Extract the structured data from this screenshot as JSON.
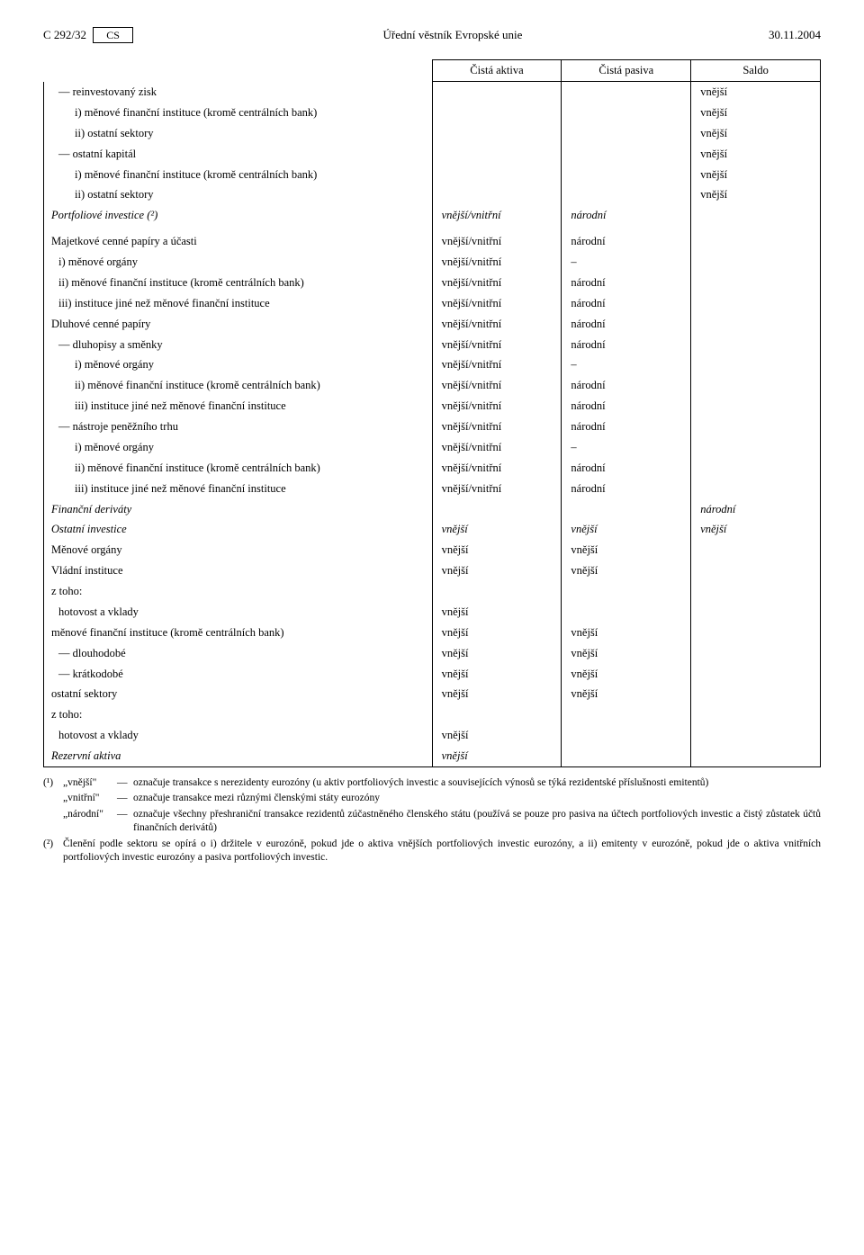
{
  "header": {
    "page_ref": "C 292/32",
    "lang_code": "CS",
    "journal_title": "Úřední věstník Evropské unie",
    "date": "30.11.2004"
  },
  "table": {
    "columns": [
      "Čistá aktiva",
      "Čistá pasiva",
      "Saldo"
    ],
    "rows": [
      {
        "label": "— reinvestovaný zisk",
        "indent": 1,
        "aktiva": "",
        "pasiva": "",
        "saldo": "vnější"
      },
      {
        "label": "i) měnové finanční instituce (kromě centrálních bank)",
        "indent": 2,
        "aktiva": "",
        "pasiva": "",
        "saldo": "vnější"
      },
      {
        "label": "ii) ostatní sektory",
        "indent": 2,
        "aktiva": "",
        "pasiva": "",
        "saldo": "vnější"
      },
      {
        "label": "— ostatní kapitál",
        "indent": 1,
        "aktiva": "",
        "pasiva": "",
        "saldo": "vnější"
      },
      {
        "label": "i) měnové finanční instituce (kromě centrálních bank)",
        "indent": 2,
        "aktiva": "",
        "pasiva": "",
        "saldo": "vnější"
      },
      {
        "label": "ii) ostatní sektory",
        "indent": 2,
        "aktiva": "",
        "pasiva": "",
        "saldo": "vnější"
      },
      {
        "label": "Portfoliové investice (²)",
        "indent": 0,
        "italic": true,
        "aktiva": "vnější/vnitřní",
        "pasiva": "národní",
        "saldo": ""
      },
      {
        "label": "Majetkové cenné papíry a účasti",
        "indent": 0,
        "aktiva": "vnější/vnitřní",
        "pasiva": "národní",
        "saldo": "",
        "gap": true
      },
      {
        "label": "i) měnové orgány",
        "indent": 1,
        "aktiva": "vnější/vnitřní",
        "pasiva": "–",
        "saldo": ""
      },
      {
        "label": "ii) měnové finanční instituce (kromě centrálních bank)",
        "indent": 1,
        "aktiva": "vnější/vnitřní",
        "pasiva": "národní",
        "saldo": ""
      },
      {
        "label": "iii) instituce jiné než měnové finanční instituce",
        "indent": 1,
        "aktiva": "vnější/vnitřní",
        "pasiva": "národní",
        "saldo": ""
      },
      {
        "label": "Dluhové cenné papíry",
        "indent": 0,
        "aktiva": "vnější/vnitřní",
        "pasiva": "národní",
        "saldo": ""
      },
      {
        "label": "— dluhopisy a směnky",
        "indent": 1,
        "aktiva": "vnější/vnitřní",
        "pasiva": "národní",
        "saldo": ""
      },
      {
        "label": "i) měnové orgány",
        "indent": 2,
        "aktiva": "vnější/vnitřní",
        "pasiva": "–",
        "saldo": ""
      },
      {
        "label": "ii) měnové finanční instituce (kromě centrálních bank)",
        "indent": 2,
        "aktiva": "vnější/vnitřní",
        "pasiva": "národní",
        "saldo": ""
      },
      {
        "label": "iii) instituce jiné než měnové finanční instituce",
        "indent": 2,
        "aktiva": "vnější/vnitřní",
        "pasiva": "národní",
        "saldo": ""
      },
      {
        "label": "— nástroje peněžního trhu",
        "indent": 1,
        "aktiva": "vnější/vnitřní",
        "pasiva": "národní",
        "saldo": ""
      },
      {
        "label": "i) měnové orgány",
        "indent": 2,
        "aktiva": "vnější/vnitřní",
        "pasiva": "–",
        "saldo": ""
      },
      {
        "label": "ii) měnové finanční instituce (kromě centrálních bank)",
        "indent": 2,
        "aktiva": "vnější/vnitřní",
        "pasiva": "národní",
        "saldo": ""
      },
      {
        "label": "iii) instituce jiné než měnové finanční instituce",
        "indent": 2,
        "aktiva": "vnější/vnitřní",
        "pasiva": "národní",
        "saldo": ""
      },
      {
        "label": "Finanční deriváty",
        "indent": 0,
        "italic": true,
        "aktiva": "",
        "pasiva": "",
        "saldo": "národní"
      },
      {
        "label": "Ostatní investice",
        "indent": 0,
        "italic": true,
        "aktiva": "vnější",
        "pasiva": "vnější",
        "saldo": "vnější"
      },
      {
        "label": "Měnové orgány",
        "indent": 0,
        "aktiva": "vnější",
        "pasiva": "vnější",
        "saldo": ""
      },
      {
        "label": "Vládní instituce",
        "indent": 0,
        "aktiva": "vnější",
        "pasiva": "vnější",
        "saldo": ""
      },
      {
        "label": "z toho:",
        "indent": 0,
        "aktiva": "",
        "pasiva": "",
        "saldo": ""
      },
      {
        "label": "hotovost a vklady",
        "indent": 1,
        "aktiva": "vnější",
        "pasiva": "",
        "saldo": ""
      },
      {
        "label": "měnové finanční instituce (kromě centrálních bank)",
        "indent": 0,
        "aktiva": "vnější",
        "pasiva": "vnější",
        "saldo": ""
      },
      {
        "label": "— dlouhodobé",
        "indent": 1,
        "aktiva": "vnější",
        "pasiva": "vnější",
        "saldo": ""
      },
      {
        "label": "— krátkodobé",
        "indent": 1,
        "aktiva": "vnější",
        "pasiva": "vnější",
        "saldo": ""
      },
      {
        "label": "ostatní sektory",
        "indent": 0,
        "aktiva": "vnější",
        "pasiva": "vnější",
        "saldo": ""
      },
      {
        "label": "z toho:",
        "indent": 0,
        "aktiva": "",
        "pasiva": "",
        "saldo": ""
      },
      {
        "label": "hotovost a vklady",
        "indent": 1,
        "aktiva": "vnější",
        "pasiva": "",
        "saldo": ""
      },
      {
        "label": "Rezervní aktiva",
        "indent": 0,
        "italic": true,
        "aktiva": "vnější",
        "pasiva": "",
        "saldo": ""
      }
    ]
  },
  "footnotes": {
    "f1_mark": "(¹)",
    "f1_t1": "„vnější\"",
    "f1_b1": "označuje transakce s nerezidenty eurozóny (u aktiv portfoliových investic a souvisejících výnosů se týká rezidentské příslušnosti emitentů)",
    "f1_t2": "„vnitřní\"",
    "f1_b2": "označuje transakce mezi různými členskými státy eurozóny",
    "f1_t3": "„národní\"",
    "f1_b3": "označuje všechny přeshraniční transakce rezidentů zúčastněného členského státu (používá se pouze pro pasiva na účtech portfoliových investic a čistý zůstatek účtů finančních derivátů)",
    "f2_mark": "(²)",
    "f2_body": "Členění podle sektoru se opírá o i) držitele v eurozóně, pokud jde o aktiva vnějších portfoliových investic eurozóny, a ii) emitenty v eurozóně, pokud jde o aktiva vnitřních portfoliových investic eurozóny a pasiva portfoliových investic."
  }
}
